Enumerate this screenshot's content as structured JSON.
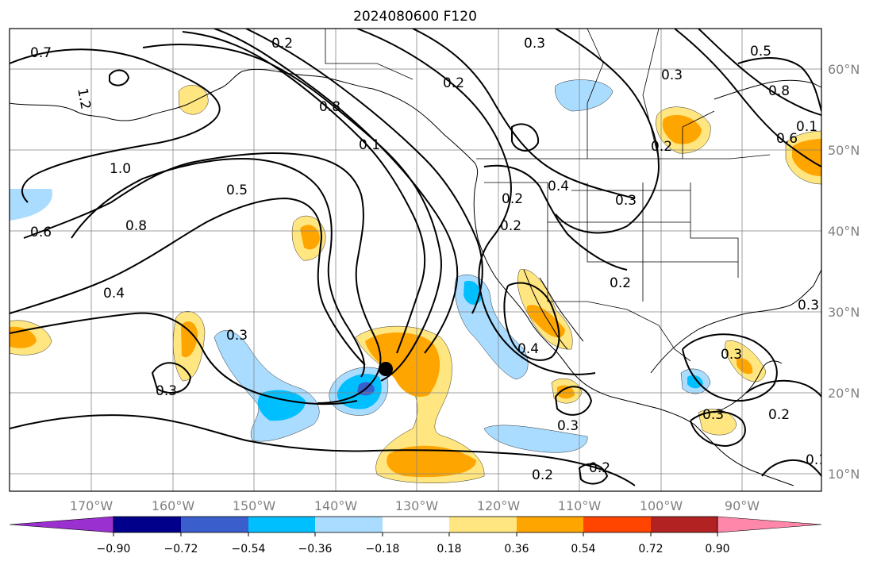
{
  "title": "2024080600 F120",
  "longitude_ticks": [
    "170°W",
    "160°W",
    "150°W",
    "140°W",
    "130°W",
    "120°W",
    "110°W",
    "100°W",
    "90°W"
  ],
  "latitude_ticks": [
    "60°N",
    "50°N",
    "40°N",
    "30°N",
    "20°N",
    "10°N"
  ],
  "colorbar": {
    "tick_labels": [
      "−0.90",
      "−0.72",
      "−0.54",
      "−0.36",
      "−0.18",
      "0.18",
      "0.36",
      "0.54",
      "0.72",
      "0.90"
    ],
    "colors": [
      "#9b30d0",
      "#00008b",
      "#3a5fcd",
      "#00bfff",
      "#aadcff",
      "#ffffff",
      "#ffe680",
      "#ffa500",
      "#ff4500",
      "#b22222",
      "#ff88aa"
    ]
  },
  "contour_labels": [
    "0.7",
    "1.2",
    "1.0",
    "0.6",
    "0.8",
    "0.4",
    "0.2",
    "0.8",
    "0.1",
    "0.5",
    "0.3",
    "0.2",
    "0.3",
    "0.3",
    "0.2",
    "0.4",
    "0.3",
    "0.2",
    "0.4",
    "0.3",
    "0.5",
    "0.8",
    "0.6",
    "0.1",
    "0.2",
    "0.3",
    "0.3",
    "0.3",
    "0.2",
    "0.2",
    "0.2",
    "0.1",
    "0.3",
    "0.2"
  ],
  "marker": "storm-center"
}
